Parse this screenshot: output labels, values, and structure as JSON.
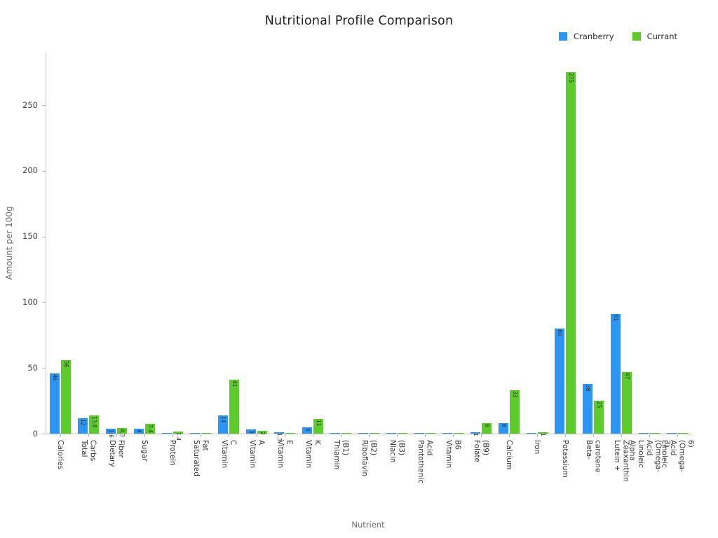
{
  "chart_data": {
    "type": "bar",
    "title": "Nutritional Profile Comparison",
    "xlabel": "Nutrient",
    "ylabel": "Amount per 100g",
    "ylim": [
      0,
      290
    ],
    "yticks": [
      0,
      50,
      100,
      150,
      200,
      250
    ],
    "grid": false,
    "legend_position": "top-right",
    "bar_label_min": 1,
    "categories": [
      "Calories",
      "Total Carbs",
      "Dietary Fiber",
      "Sugar",
      "Protein",
      "Saturated Fat",
      "Vitamin C",
      "Vitamin A",
      "Vitamin E",
      "Vitamin K",
      "Thiamin (B1)",
      "Riboflavin (B2)",
      "Niacin (B3)",
      "Pantothenic Acid",
      "Vitamin B6",
      "Folate (B9)",
      "Calcium",
      "Iron",
      "Potassium",
      "Beta-carotene",
      "Lutein + Zeaxanthin",
      "Alpha Linoleic Acid (Omega-3)",
      "Linoleic Acid (Omega-6)"
    ],
    "series": [
      {
        "name": "Cranberry",
        "color": "#2D96F5",
        "values": [
          46,
          12,
          3.6,
          4,
          0.5,
          0.01,
          14,
          3,
          1.3,
          5,
          0.01,
          0.02,
          0.1,
          0.3,
          0.06,
          1,
          8,
          0.3,
          80,
          38,
          91,
          0.02,
          0.03
        ]
      },
      {
        "name": "Currant",
        "color": "#5DCB2C",
        "values": [
          56,
          13.8,
          4.3,
          7.4,
          1.4,
          0.02,
          41,
          2,
          0.1,
          11,
          0.04,
          0.05,
          0.1,
          0.06,
          0.07,
          8,
          33,
          1,
          275,
          25,
          47,
          0.01,
          0.05
        ]
      }
    ]
  }
}
